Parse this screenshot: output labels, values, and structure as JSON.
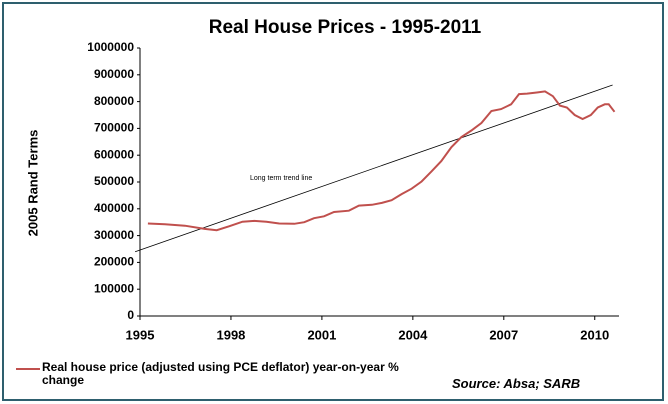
{
  "chart_data": {
    "type": "line",
    "title": "Real House Prices - 1995-2011",
    "y_label": "2005 Rand Terms",
    "source": "Source: Absa; SARB",
    "xlim": [
      1995,
      2010.8
    ],
    "xticks": [
      1995,
      1998,
      2001,
      2004,
      2007,
      2010
    ],
    "ylim": [
      0,
      1000000
    ],
    "yticks": [
      0,
      100000,
      200000,
      300000,
      400000,
      500000,
      600000,
      700000,
      800000,
      900000,
      1000000
    ],
    "legend": "bottom-left",
    "series": [
      {
        "name": "Real house price (adjusted using PCE deflator) year-on-year % change",
        "color": "#c0504d",
        "x": [
          1995.26,
          1995.82,
          1996.48,
          1997.13,
          1997.53,
          1997.95,
          1998.38,
          1998.77,
          1999.17,
          1999.59,
          2000.09,
          2000.42,
          2000.74,
          2001.07,
          2001.4,
          2001.89,
          2002.22,
          2002.65,
          2002.98,
          2003.3,
          2003.63,
          2003.96,
          2004.29,
          2004.62,
          2004.94,
          2005.27,
          2005.6,
          2005.93,
          2006.26,
          2006.59,
          2006.91,
          2007.24,
          2007.5,
          2007.77,
          2008.09,
          2008.36,
          2008.62,
          2008.85,
          2009.08,
          2009.34,
          2009.6,
          2009.87,
          2010.1,
          2010.33,
          2010.46,
          2010.65
        ],
        "values": [
          345000,
          342000,
          337000,
          325000,
          320000,
          335000,
          352000,
          355000,
          352000,
          345000,
          344000,
          350000,
          365000,
          372000,
          388000,
          393000,
          412000,
          415000,
          422000,
          432000,
          455000,
          475000,
          502000,
          540000,
          578000,
          630000,
          668000,
          692000,
          720000,
          765000,
          772000,
          790000,
          828000,
          830000,
          834000,
          838000,
          820000,
          785000,
          778000,
          750000,
          735000,
          750000,
          778000,
          790000,
          790000,
          762000
        ]
      }
    ],
    "trend_line": {
      "label": "Long term trend line",
      "color": "#000000",
      "x": [
        1994.84,
        2010.59
      ],
      "values": [
        240000,
        862000
      ]
    }
  }
}
